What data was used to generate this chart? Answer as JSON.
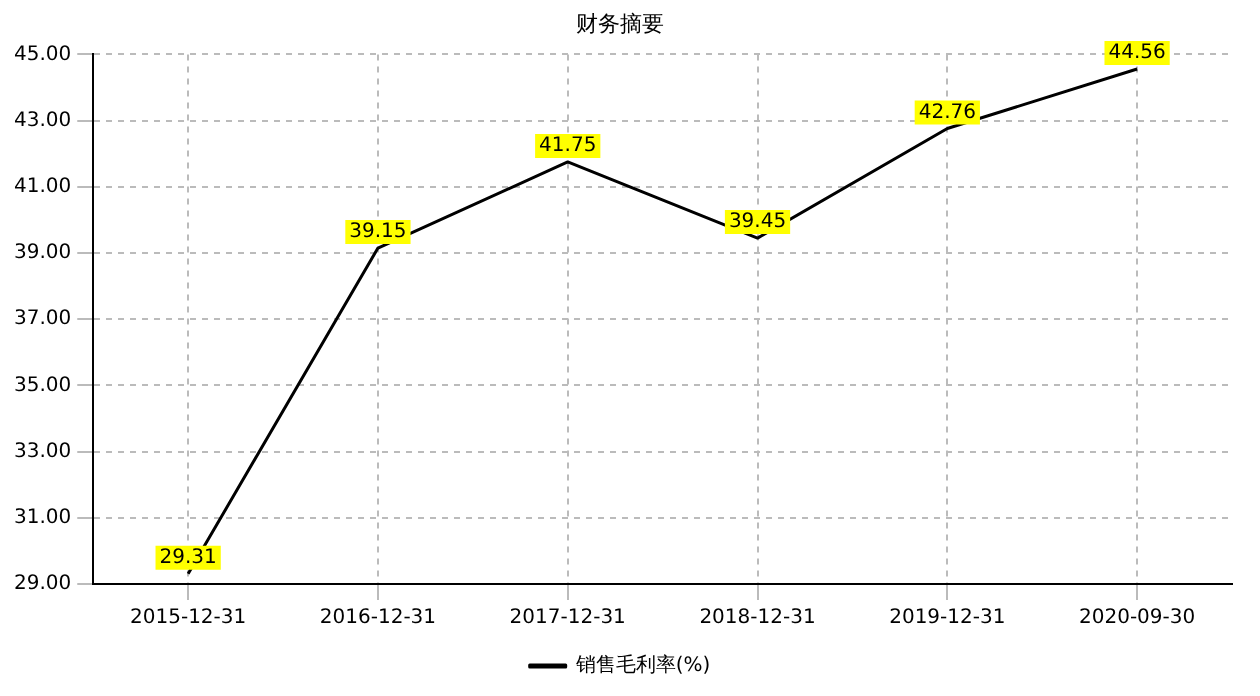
{
  "chart_data": {
    "type": "line",
    "title": "财务摘要",
    "categories": [
      "2015-12-31",
      "2016-12-31",
      "2017-12-31",
      "2018-12-31",
      "2019-12-31",
      "2020-09-30"
    ],
    "series": [
      {
        "name": "销售毛利率(%)",
        "color": "#000000",
        "values": [
          29.31,
          39.15,
          41.75,
          39.45,
          42.76,
          44.56
        ]
      }
    ],
    "ylim": [
      29,
      45
    ],
    "yticks": [
      {
        "value": 29,
        "label": "29.00"
      },
      {
        "value": 31,
        "label": "31.00"
      },
      {
        "value": 33,
        "label": "33.00"
      },
      {
        "value": 35,
        "label": "35.00"
      },
      {
        "value": 37,
        "label": "37.00"
      },
      {
        "value": 39,
        "label": "39.00"
      },
      {
        "value": 41,
        "label": "41.00"
      },
      {
        "value": 43,
        "label": "43.00"
      },
      {
        "value": 45,
        "label": "45.00"
      }
    ],
    "grid": true,
    "legend": "bottom",
    "marker": "none",
    "line_style": "solid",
    "data_labels": true
  }
}
